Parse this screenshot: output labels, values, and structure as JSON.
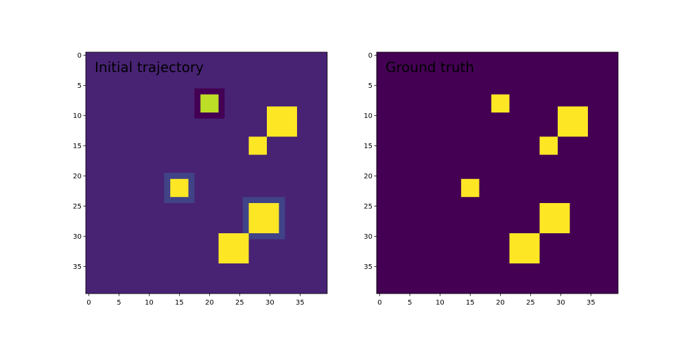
{
  "chart_data": [
    {
      "type": "heatmap",
      "title": "Initial trajectory",
      "grid_size": 40,
      "xticks": [
        0,
        5,
        10,
        15,
        20,
        25,
        30,
        35
      ],
      "yticks": [
        0,
        5,
        10,
        15,
        20,
        25,
        30,
        35
      ],
      "colormap": "viridis",
      "value_range": [
        0,
        1
      ],
      "background_value": 0.1,
      "cells": [
        {
          "x0": 18,
          "x1": 23,
          "y0": 6,
          "y1": 11,
          "value": 0.0
        },
        {
          "x0": 19,
          "x1": 22,
          "y0": 7,
          "y1": 10,
          "value": 0.9
        },
        {
          "x0": 30,
          "x1": 35,
          "y0": 9,
          "y1": 14,
          "value": 1.0
        },
        {
          "x0": 27,
          "x1": 30,
          "y0": 14,
          "y1": 17,
          "value": 1.0
        },
        {
          "x0": 13,
          "x1": 18,
          "y0": 20,
          "y1": 25,
          "value": 0.2
        },
        {
          "x0": 14,
          "x1": 17,
          "y0": 21,
          "y1": 24,
          "value": 1.0
        },
        {
          "x0": 26,
          "x1": 33,
          "y0": 24,
          "y1": 31,
          "value": 0.2
        },
        {
          "x0": 27,
          "x1": 32,
          "y0": 25,
          "y1": 30,
          "value": 1.0
        },
        {
          "x0": 22,
          "x1": 27,
          "y0": 30,
          "y1": 35,
          "value": 1.0
        }
      ]
    },
    {
      "type": "heatmap",
      "title": "Ground truth",
      "grid_size": 40,
      "xticks": [
        0,
        5,
        10,
        15,
        20,
        25,
        30,
        35
      ],
      "yticks": [
        0,
        5,
        10,
        15,
        20,
        25,
        30,
        35
      ],
      "colormap": "viridis",
      "value_range": [
        0,
        1
      ],
      "background_value": 0.0,
      "cells": [
        {
          "x0": 19,
          "x1": 22,
          "y0": 7,
          "y1": 10,
          "value": 1.0
        },
        {
          "x0": 30,
          "x1": 35,
          "y0": 9,
          "y1": 14,
          "value": 1.0
        },
        {
          "x0": 27,
          "x1": 30,
          "y0": 14,
          "y1": 17,
          "value": 1.0
        },
        {
          "x0": 14,
          "x1": 17,
          "y0": 21,
          "y1": 24,
          "value": 1.0
        },
        {
          "x0": 27,
          "x1": 32,
          "y0": 25,
          "y1": 30,
          "value": 1.0
        },
        {
          "x0": 22,
          "x1": 27,
          "y0": 30,
          "y1": 35,
          "value": 1.0
        }
      ]
    }
  ]
}
